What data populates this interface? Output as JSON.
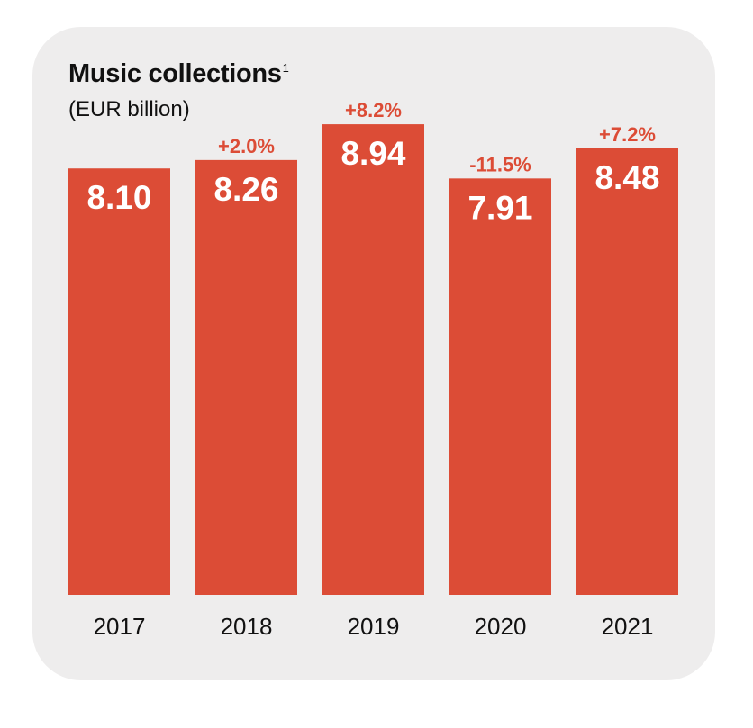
{
  "chart_data": {
    "type": "bar",
    "title": "Music collections",
    "title_footnote": "1",
    "subtitle": "(EUR billion)",
    "categories": [
      "2017",
      "2018",
      "2019",
      "2020",
      "2021"
    ],
    "values": [
      8.1,
      8.26,
      8.94,
      7.91,
      8.48
    ],
    "value_labels": [
      "8.10",
      "8.26",
      "8.94",
      "7.91",
      "8.48"
    ],
    "change_labels": [
      "",
      "+2.0%",
      "+8.2%",
      "-11.5%",
      "+7.2%"
    ],
    "ylim": [
      0,
      10.6
    ],
    "grid": false,
    "legend": "none",
    "colors": {
      "bar": "#dc4c36",
      "change_label": "#dc4c36",
      "card_background": "#eeeded",
      "text": "#111111"
    }
  }
}
